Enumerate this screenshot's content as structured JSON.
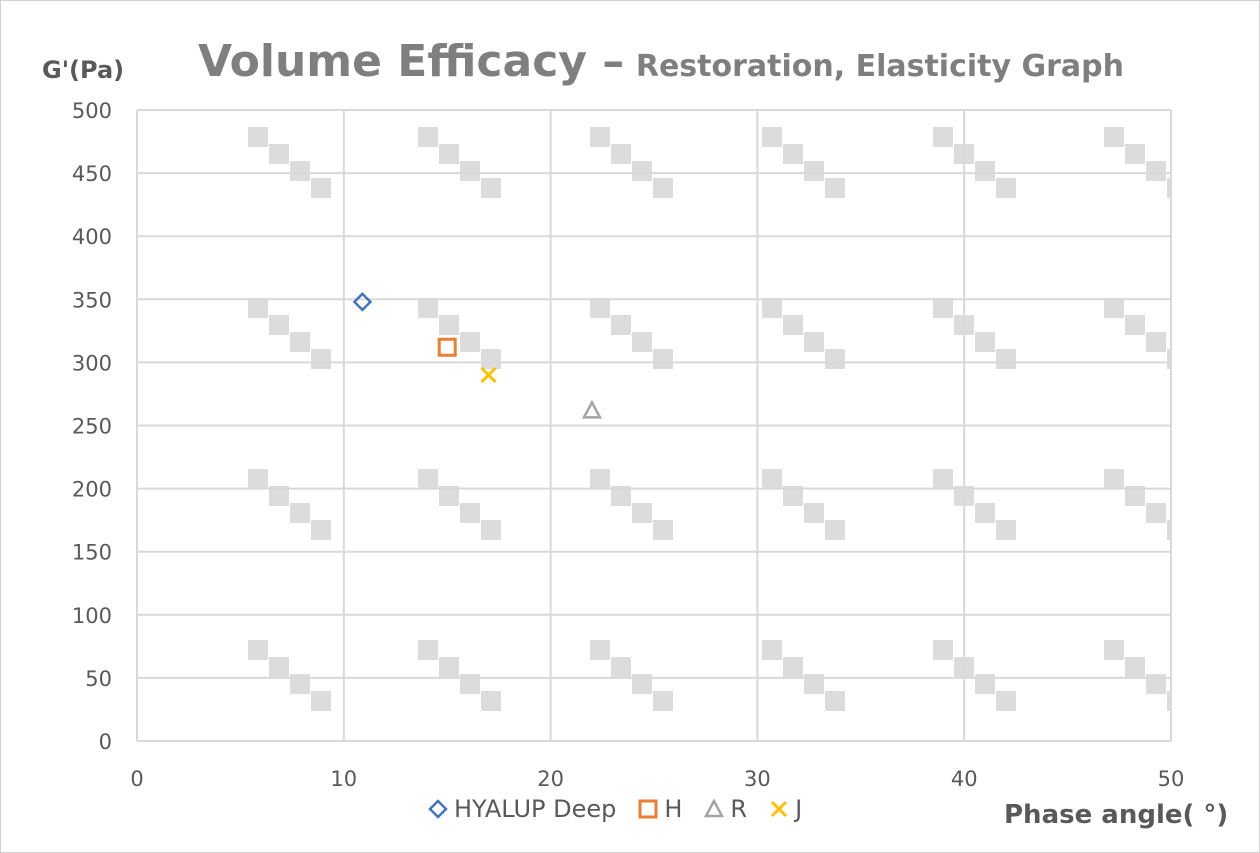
{
  "chart_data": {
    "type": "scatter",
    "title": "Volume Efficacy –",
    "subtitle": "Restoration, Elasticity Graph",
    "xlabel": "Phase angle( °)",
    "ylabel": "G'(Pa)",
    "xlim": [
      0,
      50
    ],
    "ylim": [
      0,
      500
    ],
    "xticks": [
      0,
      10,
      20,
      30,
      40,
      50
    ],
    "yticks": [
      0,
      50,
      100,
      150,
      200,
      250,
      300,
      350,
      400,
      450,
      500
    ],
    "grid": true,
    "legend_position": "bottom",
    "series": [
      {
        "name": "HYALUP Deep",
        "marker": "diamond",
        "color": "#4472c4",
        "points": [
          {
            "x": 10.9,
            "y": 348
          }
        ]
      },
      {
        "name": "H",
        "marker": "square",
        "color": "#ed7d31",
        "points": [
          {
            "x": 15.0,
            "y": 312
          }
        ]
      },
      {
        "name": "R",
        "marker": "triangle",
        "color": "#a5a5a5",
        "points": [
          {
            "x": 22.0,
            "y": 262
          }
        ]
      },
      {
        "name": "J",
        "marker": "x",
        "color": "#ffc000",
        "points": [
          {
            "x": 17.0,
            "y": 290
          }
        ]
      }
    ]
  },
  "colors": {
    "grid": "#d9d9d9",
    "text": "#595959",
    "title": "#7f7f7f",
    "watermark": "#dcdcdc"
  }
}
